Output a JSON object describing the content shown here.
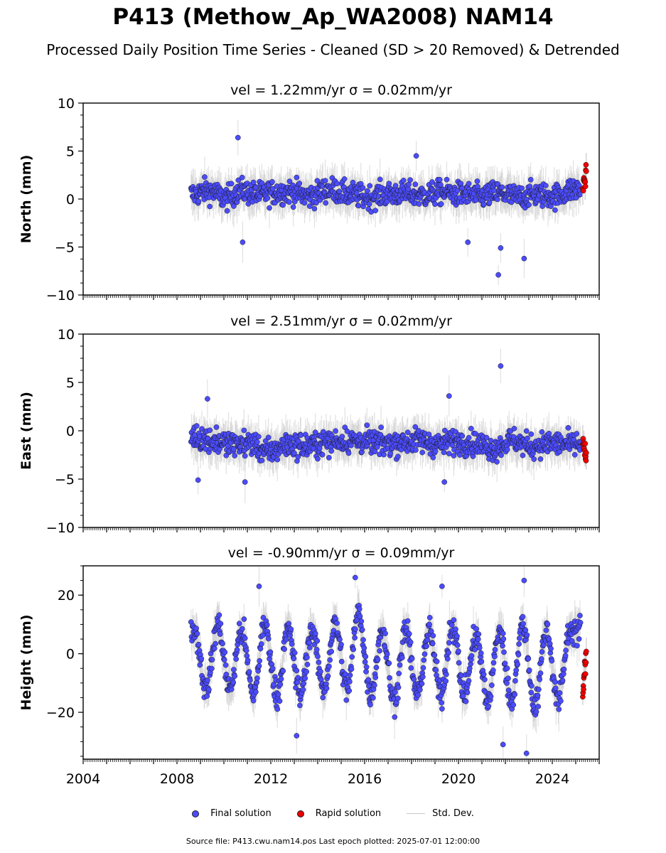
{
  "title": "P413 (Methow_Ap_WA2008) NAM14",
  "subtitle": "Processed Daily Position Time Series - Cleaned (SD > 20 Removed) & Detrended",
  "legend": {
    "final_label": "Final solution",
    "rapid_label": "Rapid solution",
    "std_label": "Std. Dev.",
    "final_color": "#4b4bff",
    "rapid_color": "#ee0000",
    "std_color": "#c8c8c8"
  },
  "footer": "Source file: P413.cwu.nam14.pos  Last epoch plotted: 2025-07-01 12:00:00",
  "chart_data": [
    {
      "type": "scatter",
      "component": "north",
      "title": "vel = 1.22mm/yr   σ = 0.02mm/yr",
      "ylabel": "North (mm)",
      "xlim": [
        2004,
        2026
      ],
      "ylim": [
        -10,
        10
      ],
      "yticks": [
        -10,
        -5,
        0,
        5,
        10
      ],
      "xticks": [
        2004,
        2008,
        2012,
        2016,
        2020,
        2024
      ],
      "show_xtick_labels": false,
      "final_span": [
        2008.6,
        2025.2
      ],
      "rapid_span": [
        2025.25,
        2025.5
      ],
      "series": [
        {
          "name": "Final solution",
          "x": [
            2008.7,
            2009.3,
            2010.1,
            2010.7,
            2011.4,
            2012.2,
            2012.9,
            2013.6,
            2014.5,
            2015.3,
            2016.1,
            2016.9,
            2017.7,
            2018.5,
            2019.3,
            2020.1,
            2020.9,
            2021.7,
            2022.5,
            2023.3,
            2024.1,
            2024.9
          ],
          "y": [
            0.5,
            0.9,
            0.1,
            0.9,
            0.5,
            0.7,
            0.8,
            0.3,
            1.0,
            0.5,
            0.2,
            0.5,
            0.6,
            0.4,
            0.7,
            0.5,
            0.3,
            0.6,
            0.2,
            0.5,
            0.3,
            1.0
          ]
        },
        {
          "name": "Rapid solution",
          "x": [
            2025.3,
            2025.35,
            2025.4,
            2025.45
          ],
          "y": [
            1.0,
            2.2,
            1.5,
            3.2
          ]
        }
      ],
      "outliers": [
        [
          2010.6,
          6.4
        ],
        [
          2021.7,
          -7.9
        ],
        [
          2021.8,
          -5.1
        ],
        [
          2022.8,
          -6.2
        ],
        [
          2020.4,
          -4.5
        ],
        [
          2010.8,
          -4.5
        ],
        [
          2018.2,
          4.5
        ]
      ]
    },
    {
      "type": "scatter",
      "component": "east",
      "title": "vel = 2.51mm/yr   σ = 0.02mm/yr",
      "ylabel": "East (mm)",
      "xlim": [
        2004,
        2026
      ],
      "ylim": [
        -10,
        10
      ],
      "yticks": [
        -10,
        -5,
        0,
        5,
        10
      ],
      "xticks": [
        2004,
        2008,
        2012,
        2016,
        2020,
        2024
      ],
      "show_xtick_labels": false,
      "final_span": [
        2008.6,
        2025.2
      ],
      "rapid_span": [
        2025.25,
        2025.5
      ],
      "series": [
        {
          "name": "Final solution",
          "x": [
            2008.7,
            2009.5,
            2010.3,
            2011.1,
            2011.9,
            2012.7,
            2013.5,
            2014.3,
            2015.1,
            2015.9,
            2016.7,
            2017.5,
            2018.3,
            2019.1,
            2019.9,
            2020.7,
            2021.5,
            2022.3,
            2023.1,
            2023.9,
            2024.7
          ],
          "y": [
            -0.6,
            -1.0,
            -1.4,
            -1.3,
            -2.2,
            -1.4,
            -1.6,
            -1.2,
            -1.0,
            -1.1,
            -1.3,
            -1.2,
            -1.0,
            -1.4,
            -1.1,
            -1.3,
            -1.8,
            -1.0,
            -1.6,
            -1.3,
            -1.4
          ]
        },
        {
          "name": "Rapid solution",
          "x": [
            2025.3,
            2025.35,
            2025.4,
            2025.45
          ],
          "y": [
            -1.0,
            -1.6,
            -2.1,
            -2.4
          ]
        }
      ],
      "outliers": [
        [
          2021.8,
          6.7
        ],
        [
          2019.6,
          3.6
        ],
        [
          2009.3,
          3.3
        ],
        [
          2010.9,
          -5.3
        ],
        [
          2019.4,
          -5.3
        ],
        [
          2008.9,
          -5.1
        ]
      ]
    },
    {
      "type": "scatter",
      "component": "height",
      "title": "vel = -0.90mm/yr   σ = 0.09mm/yr",
      "ylabel": "Height (mm)",
      "xlim": [
        2004,
        2026
      ],
      "ylim": [
        -36,
        30
      ],
      "yticks": [
        -20,
        0,
        20
      ],
      "xticks": [
        2004,
        2008,
        2012,
        2016,
        2020,
        2024
      ],
      "xtick_labels": [
        "2004",
        "2008",
        "2012",
        "2016",
        "2020",
        "2024"
      ],
      "show_xtick_labels": true,
      "final_span": [
        2008.6,
        2025.2
      ],
      "rapid_span": [
        2025.25,
        2025.5
      ],
      "seasonal_amplitude_mm": 10,
      "seasonal_peak_phase_yr": 0.75,
      "series": [
        {
          "name": "Final solution",
          "x": [
            2008.75,
            2009.25,
            2009.75,
            2010.25,
            2010.75,
            2011.25,
            2011.75,
            2012.25,
            2012.75,
            2013.25,
            2013.75,
            2014.25,
            2014.75,
            2015.25,
            2015.75,
            2016.25,
            2016.75,
            2017.25,
            2017.75,
            2018.25,
            2018.75,
            2019.25,
            2019.75,
            2020.25,
            2020.75,
            2021.25,
            2021.75,
            2022.25,
            2022.75,
            2023.25,
            2023.75,
            2024.25,
            2024.75
          ],
          "y": [
            8,
            -12,
            10,
            -12,
            8,
            -14,
            10,
            -14,
            8,
            -14,
            8,
            -12,
            10,
            -12,
            14,
            -14,
            8,
            -16,
            8,
            -14,
            8,
            -14,
            10,
            -14,
            6,
            -16,
            8,
            -16,
            10,
            -18,
            8,
            -16,
            8
          ]
        },
        {
          "name": "Rapid solution",
          "x": [
            2025.3,
            2025.35,
            2025.4,
            2025.45
          ],
          "y": [
            -12,
            -8,
            -4,
            0
          ]
        }
      ],
      "outliers": [
        [
          2015.6,
          26
        ],
        [
          2022.8,
          25
        ],
        [
          2011.5,
          23
        ],
        [
          2019.3,
          23
        ],
        [
          2022.9,
          -34
        ],
        [
          2021.9,
          -31
        ],
        [
          2013.1,
          -28
        ]
      ]
    }
  ]
}
